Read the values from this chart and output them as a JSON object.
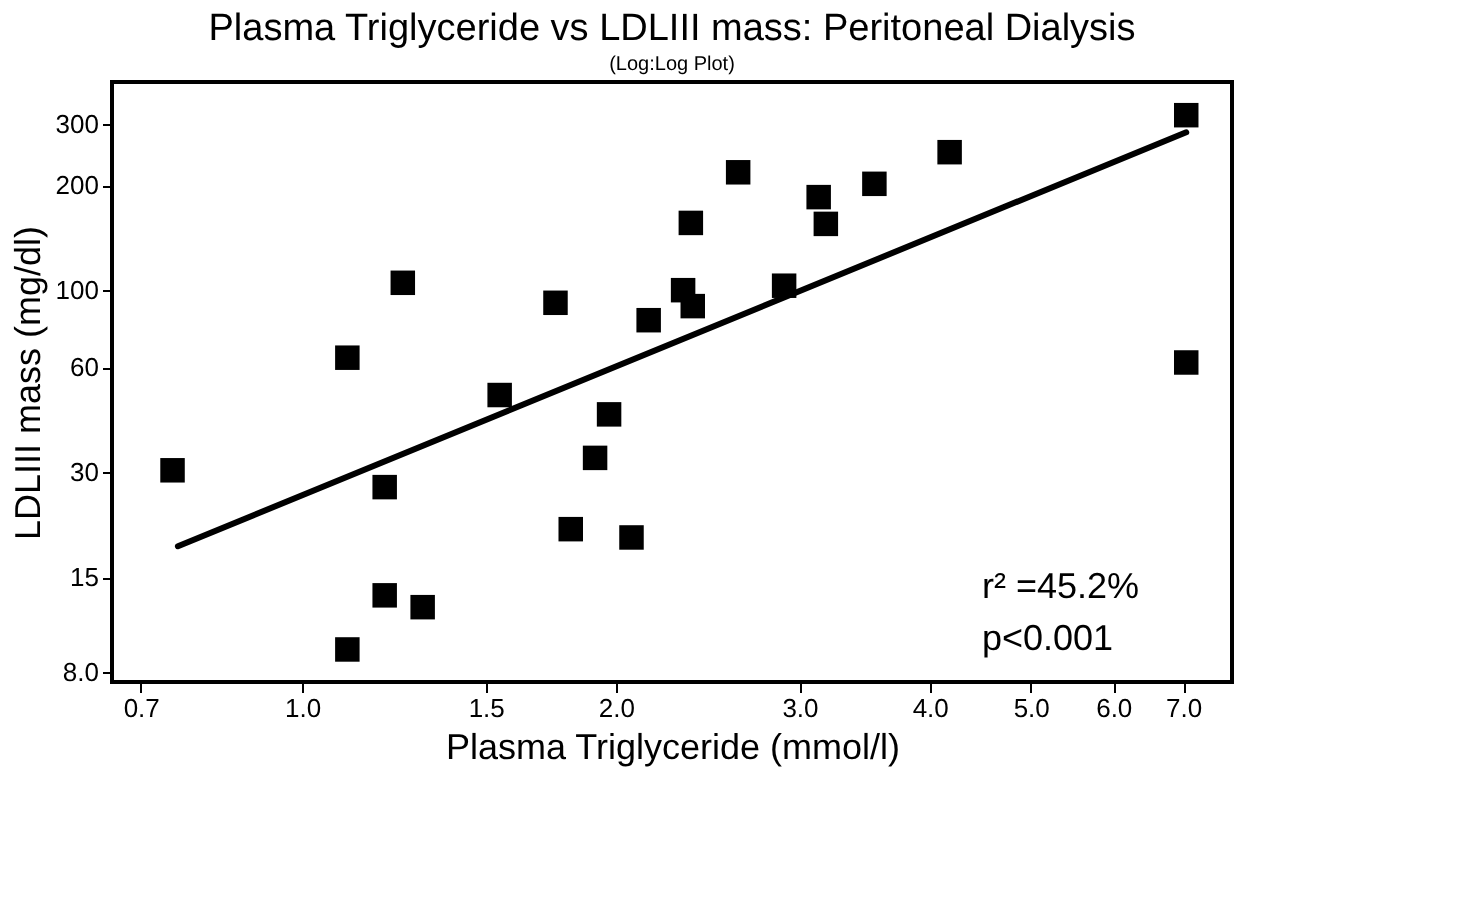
{
  "chart_data": {
    "type": "scatter",
    "title": "Plasma Triglyceride vs LDLIII mass: Peritoneal Dialysis",
    "subtitle": "(Log:Log Plot)",
    "xlabel": "Plasma Triglyceride (mmol/l)",
    "ylabel": "LDLIII mass (mg/dl)",
    "log": "xy",
    "grid": false,
    "marker": "square",
    "xlim": [
      0.657,
      7.8
    ],
    "ylim": [
      7.5,
      396
    ],
    "xticks": [
      0.7,
      {
        "value": 1,
        "label": "1.0"
      },
      1.5,
      {
        "value": 2,
        "label": "2.0"
      },
      {
        "value": 3,
        "label": "3.0"
      },
      {
        "value": 4,
        "label": "4.0"
      },
      {
        "value": 5,
        "label": "5.0"
      },
      {
        "value": 6,
        "label": "6.0"
      },
      {
        "value": 7,
        "label": "7.0"
      }
    ],
    "yticks": [
      {
        "value": 8,
        "label": "8.0"
      },
      15,
      30,
      60,
      100,
      200,
      300
    ],
    "series": [
      {
        "type": "scatter",
        "color": "#000000",
        "x": [
          0.751,
          1.105,
          1.249,
          1.2,
          1.2,
          1.305,
          1.105,
          1.547,
          1.75,
          1.81,
          1.91,
          1.97,
          2.07,
          2.15,
          2.32,
          2.37,
          2.36,
          2.62,
          2.9,
          3.13,
          3.18,
          3.54,
          4.18,
          7.05,
          7.05
        ],
        "values": [
          30.4,
          64,
          105,
          27.2,
          13.3,
          12.3,
          9.3,
          50,
          92,
          20.6,
          33,
          44,
          19.5,
          82,
          100,
          90,
          156,
          218,
          103,
          185,
          155,
          202,
          249,
          318,
          62
        ]
      },
      {
        "type": "line",
        "color": "#000000",
        "marker": "none",
        "x": [
          0.76,
          7.05
        ],
        "values": [
          18.4,
          284
        ]
      }
    ],
    "annotations": [
      "r² =45.2%",
      "p<0.001"
    ]
  }
}
